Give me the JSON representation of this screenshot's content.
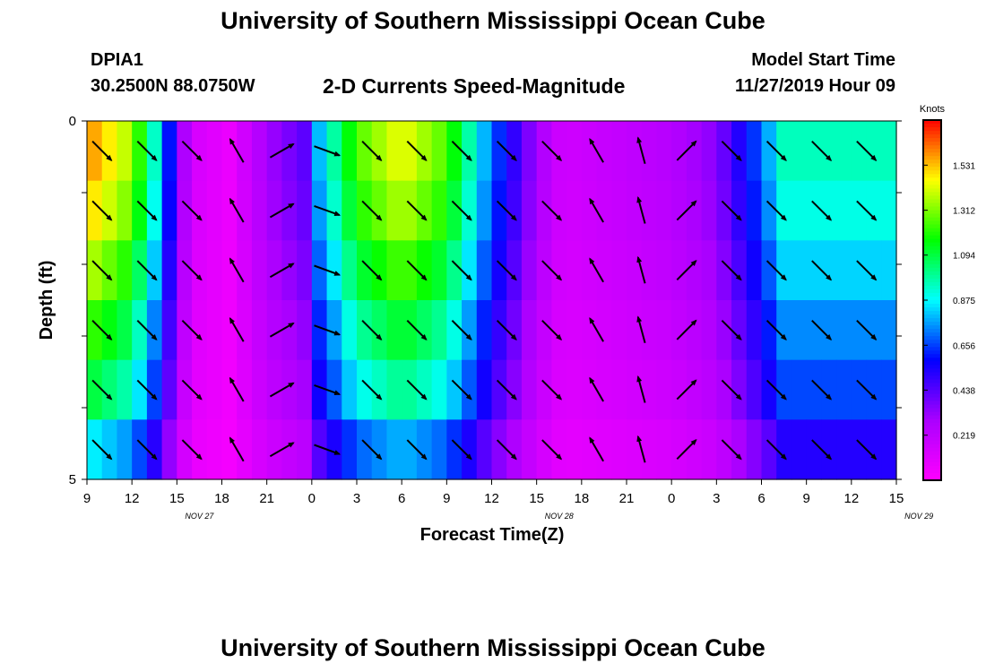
{
  "header": {
    "title": "University of Southern Mississippi Ocean Cube",
    "station": "DPIA1",
    "coordinates": "30.2500N 88.0750W",
    "subtitle": "2-D Currents Speed-Magnitude",
    "model_start_label": "Model Start Time",
    "model_start_value": "11/27/2019 Hour 09"
  },
  "footer": {
    "title": "University of Southern Mississippi Ocean Cube"
  },
  "chart_data": {
    "type": "heatmap",
    "xlabel": "Forecast Time(Z)",
    "ylabel": "Depth (ft)",
    "x_ticks": [
      "9",
      "12",
      "15",
      "18",
      "21",
      "0",
      "3",
      "6",
      "9",
      "12",
      "15",
      "18",
      "21",
      "0",
      "3",
      "6",
      "9",
      "12",
      "15"
    ],
    "date_labels": [
      {
        "label": "NOV  27",
        "hour_offset": 7.5
      },
      {
        "label": "NOV  28",
        "hour_offset": 31.5
      },
      {
        "label": "NOV  29",
        "hour_offset": 55.5
      }
    ],
    "y_ticks": [
      "0",
      "5"
    ],
    "ylim": [
      0,
      5
    ],
    "hour_range": [
      0,
      54
    ],
    "depth_layers": 6,
    "colorbar": {
      "title": "Knots",
      "labels": [
        "1.531",
        "1.312",
        "1.094",
        "0.875",
        "0.656",
        "0.438",
        "0.219"
      ],
      "values": [
        1.531,
        1.312,
        1.094,
        0.875,
        0.656,
        0.438,
        0.219
      ],
      "range": [
        0,
        1.75
      ],
      "colors": [
        "#ff00ff",
        "#aa00ff",
        "#0000ff",
        "#00ffff",
        "#00ff00",
        "#ffff00",
        "#ff0000"
      ]
    },
    "speed_profile": {
      "hours": [
        0,
        3,
        5,
        6,
        7,
        9.5,
        12,
        15,
        15.5,
        18,
        21,
        24,
        27,
        30,
        31.5,
        32.5,
        35,
        39,
        42,
        45,
        46.5,
        48,
        51,
        54
      ],
      "surface_knots": [
        1.6,
        1.35,
        0.8,
        0.4,
        0.15,
        0.07,
        0.3,
        0.45,
        0.8,
        1.25,
        1.45,
        1.25,
        0.7,
        0.3,
        0.18,
        0.17,
        0.2,
        0.25,
        0.35,
        0.7,
        0.95,
        0.95,
        0.95,
        0.95
      ]
    },
    "layer_factors": [
      1.0,
      0.95,
      0.87,
      0.78,
      0.7,
      0.55
    ],
    "vector_hours": [
      1,
      4,
      7,
      10,
      13,
      16,
      19,
      22,
      25,
      28,
      31,
      34,
      37,
      40,
      43,
      46,
      49,
      52
    ],
    "vector_directions_deg": [
      135,
      135,
      135,
      330,
      60,
      110,
      135,
      135,
      135,
      135,
      135,
      330,
      345,
      45,
      135,
      135,
      135,
      135
    ]
  }
}
